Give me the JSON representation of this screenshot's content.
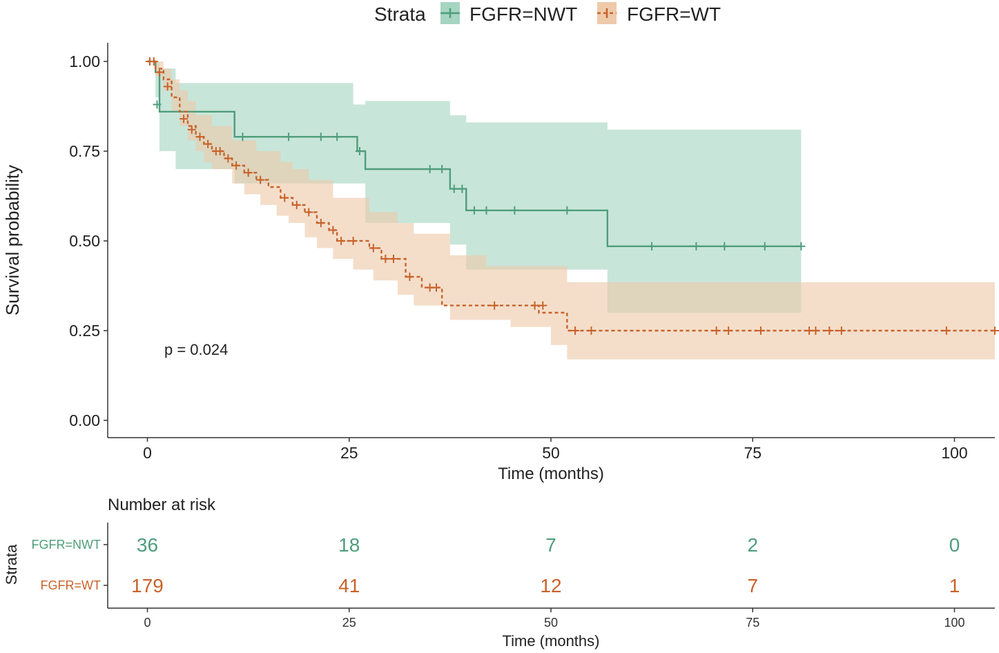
{
  "chart_data": [
    {
      "type": "line",
      "subtype": "kaplan-meier",
      "xlabel": "Time (months)",
      "ylabel": "Survival probability",
      "xlim": [
        -5,
        105
      ],
      "ylim": [
        -0.05,
        1.05
      ],
      "xticks": [
        0,
        25,
        50,
        75,
        100
      ],
      "xtick_labels": [
        "0",
        "25",
        "50",
        "75",
        "100"
      ],
      "yticks": [
        0,
        0.25,
        0.5,
        0.75,
        1.0
      ],
      "ytick_labels": [
        "0.00",
        "0.25",
        "0.50",
        "0.75",
        "1.00"
      ],
      "grid": false,
      "legend": {
        "title": "Strata",
        "position": "top"
      },
      "annotation": "p = 0.024",
      "series": [
        {
          "name": "FGFR=NWT",
          "color": "#4e9d7b",
          "fill": "#a6d5c2",
          "line_style": "solid",
          "steps": [
            [
              0,
              1.0
            ],
            [
              1,
              0.97
            ],
            [
              1.5,
              0.86
            ],
            [
              10.8,
              0.79
            ],
            [
              26,
              0.75
            ],
            [
              27,
              0.7
            ],
            [
              37.5,
              0.645
            ],
            [
              39.5,
              0.585
            ],
            [
              57,
              0.485
            ],
            [
              81,
              0.485
            ]
          ],
          "ci_upper": [
            [
              0,
              1.0
            ],
            [
              1,
              1.0
            ],
            [
              1.5,
              0.98
            ],
            [
              3.5,
              0.94
            ],
            [
              10.8,
              0.94
            ],
            [
              25.5,
              0.88
            ],
            [
              27,
              0.89
            ],
            [
              37.5,
              0.85
            ],
            [
              39.5,
              0.83
            ],
            [
              57,
              0.81
            ],
            [
              81,
              0.81
            ]
          ],
          "ci_lower": [
            [
              0,
              1.0
            ],
            [
              1,
              0.9
            ],
            [
              1.5,
              0.75
            ],
            [
              3.5,
              0.7
            ],
            [
              10.8,
              0.66
            ],
            [
              26,
              0.66
            ],
            [
              27,
              0.55
            ],
            [
              37.5,
              0.49
            ],
            [
              39.5,
              0.42
            ],
            [
              57,
              0.3
            ],
            [
              81,
              0.3
            ]
          ],
          "censored": [
            [
              1.2,
              0.88
            ],
            [
              11.8,
              0.79
            ],
            [
              17.5,
              0.79
            ],
            [
              21.5,
              0.79
            ],
            [
              23.5,
              0.79
            ],
            [
              26.3,
              0.75
            ],
            [
              35,
              0.7
            ],
            [
              36.5,
              0.7
            ],
            [
              38,
              0.645
            ],
            [
              39,
              0.645
            ],
            [
              40.5,
              0.585
            ],
            [
              42,
              0.585
            ],
            [
              45.5,
              0.585
            ],
            [
              52,
              0.585
            ],
            [
              62.5,
              0.485
            ],
            [
              68,
              0.485
            ],
            [
              71.5,
              0.485
            ],
            [
              76.5,
              0.485
            ],
            [
              81,
              0.485
            ]
          ]
        },
        {
          "name": "FGFR=WT",
          "color": "#c8622a",
          "fill": "#eecaaa",
          "line_style": "dashed",
          "steps": [
            [
              0,
              1.0
            ],
            [
              1,
              0.98
            ],
            [
              2,
              0.95
            ],
            [
              3,
              0.9
            ],
            [
              4,
              0.86
            ],
            [
              5,
              0.82
            ],
            [
              6,
              0.79
            ],
            [
              7,
              0.77
            ],
            [
              8,
              0.75
            ],
            [
              9.5,
              0.73
            ],
            [
              10.5,
              0.71
            ],
            [
              12,
              0.69
            ],
            [
              13.5,
              0.67
            ],
            [
              15,
              0.65
            ],
            [
              16.5,
              0.62
            ],
            [
              18,
              0.6
            ],
            [
              19.5,
              0.58
            ],
            [
              21,
              0.55
            ],
            [
              22.5,
              0.53
            ],
            [
              23.5,
              0.5
            ],
            [
              27.5,
              0.48
            ],
            [
              29,
              0.45
            ],
            [
              32,
              0.4
            ],
            [
              34,
              0.37
            ],
            [
              36.5,
              0.32
            ],
            [
              48.5,
              0.3
            ],
            [
              52,
              0.25
            ],
            [
              105,
              0.25
            ]
          ],
          "ci_upper": [
            [
              0,
              1.0
            ],
            [
              1,
              1.0
            ],
            [
              2,
              0.98
            ],
            [
              3,
              0.95
            ],
            [
              4,
              0.92
            ],
            [
              5,
              0.89
            ],
            [
              6,
              0.85
            ],
            [
              8,
              0.82
            ],
            [
              10.5,
              0.78
            ],
            [
              13.5,
              0.75
            ],
            [
              16.5,
              0.72
            ],
            [
              18,
              0.7
            ],
            [
              20,
              0.67
            ],
            [
              23,
              0.62
            ],
            [
              27.5,
              0.58
            ],
            [
              31,
              0.55
            ],
            [
              33,
              0.52
            ],
            [
              37.5,
              0.46
            ],
            [
              42,
              0.43
            ],
            [
              52,
              0.385
            ],
            [
              105,
              0.385
            ]
          ],
          "ci_lower": [
            [
              0,
              1.0
            ],
            [
              1,
              0.96
            ],
            [
              2,
              0.92
            ],
            [
              3,
              0.86
            ],
            [
              4,
              0.82
            ],
            [
              5,
              0.78
            ],
            [
              6,
              0.75
            ],
            [
              7,
              0.72
            ],
            [
              8,
              0.7
            ],
            [
              10.5,
              0.66
            ],
            [
              12,
              0.63
            ],
            [
              14,
              0.6
            ],
            [
              16,
              0.57
            ],
            [
              17.5,
              0.55
            ],
            [
              19.5,
              0.51
            ],
            [
              21,
              0.48
            ],
            [
              23,
              0.45
            ],
            [
              25.5,
              0.42
            ],
            [
              28,
              0.39
            ],
            [
              31,
              0.35
            ],
            [
              33,
              0.32
            ],
            [
              37.5,
              0.28
            ],
            [
              45,
              0.26
            ],
            [
              50,
              0.21
            ],
            [
              52,
              0.17
            ],
            [
              105,
              0.17
            ]
          ],
          "censored": [
            [
              0.3,
              1.0
            ],
            [
              0.8,
              1.0
            ],
            [
              1.5,
              0.97
            ],
            [
              2.5,
              0.93
            ],
            [
              4.5,
              0.84
            ],
            [
              5.5,
              0.81
            ],
            [
              6.5,
              0.79
            ],
            [
              7.5,
              0.77
            ],
            [
              8.5,
              0.75
            ],
            [
              9,
              0.75
            ],
            [
              10,
              0.73
            ],
            [
              11,
              0.71
            ],
            [
              12.5,
              0.69
            ],
            [
              14,
              0.67
            ],
            [
              17,
              0.62
            ],
            [
              18.5,
              0.6
            ],
            [
              20,
              0.58
            ],
            [
              21.5,
              0.55
            ],
            [
              23,
              0.53
            ],
            [
              24,
              0.5
            ],
            [
              25.5,
              0.5
            ],
            [
              28,
              0.48
            ],
            [
              29.5,
              0.45
            ],
            [
              30.5,
              0.45
            ],
            [
              32.5,
              0.4
            ],
            [
              35,
              0.37
            ],
            [
              35.8,
              0.37
            ],
            [
              43,
              0.32
            ],
            [
              48,
              0.32
            ],
            [
              49,
              0.32
            ],
            [
              53,
              0.25
            ],
            [
              55,
              0.25
            ],
            [
              70.5,
              0.25
            ],
            [
              72,
              0.25
            ],
            [
              76,
              0.25
            ],
            [
              82,
              0.25
            ],
            [
              82.8,
              0.25
            ],
            [
              84.5,
              0.25
            ],
            [
              86,
              0.25
            ],
            [
              99,
              0.25
            ],
            [
              105,
              0.25
            ]
          ]
        }
      ]
    },
    {
      "type": "table",
      "title": "Number at risk",
      "ylabel": "Strata",
      "xlabel": "Time (months)",
      "xticks": [
        0,
        25,
        50,
        75,
        100
      ],
      "xtick_labels": [
        "0",
        "25",
        "50",
        "75",
        "100"
      ],
      "rows": [
        {
          "name": "FGFR=NWT",
          "color": "#4e9d7b",
          "values": [
            "36",
            "18",
            "7",
            "2",
            "0"
          ]
        },
        {
          "name": "FGFR=WT",
          "color": "#c8622a",
          "values": [
            "179",
            "41",
            "12",
            "7",
            "1"
          ]
        }
      ]
    }
  ]
}
